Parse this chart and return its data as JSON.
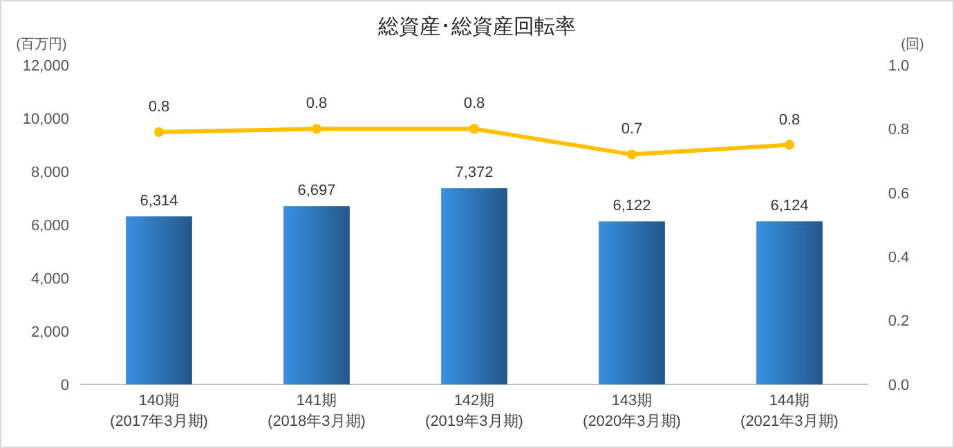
{
  "chart_data": {
    "type": "bar",
    "title": "総資産･総資産回転率",
    "ylabel": "(百万円)",
    "y2label": "(回)",
    "categories": [
      "140期\n(2017年3月期)",
      "141期\n(2018年3月期)",
      "142期\n(2019年3月期)",
      "143期\n(2020年3月期)",
      "144期\n(2021年3月期)"
    ],
    "series": [
      {
        "color": "#2e75b6",
        "values": [
          6314,
          6697,
          7372,
          6122,
          6124
        ],
        "value_labels": [
          "6,314",
          "6,697",
          "7,372",
          "6,122",
          "6,124"
        ]
      },
      {
        "type": "line",
        "axis": "y2",
        "color": "#ffc000",
        "values": [
          0.79,
          0.8,
          0.8,
          0.72,
          0.75
        ],
        "value_labels": [
          "0.8",
          "0.8",
          "0.8",
          "0.7",
          "0.8"
        ]
      }
    ],
    "ylim": [
      0,
      12000
    ],
    "yticks": [
      0,
      {
        "value": 2000,
        "label": "2,000"
      },
      {
        "value": 4000,
        "label": "4,000"
      },
      {
        "value": 6000,
        "label": "6,000"
      },
      {
        "value": 8000,
        "label": "8,000"
      },
      {
        "value": 10000,
        "label": "10,000"
      },
      {
        "value": 12000,
        "label": "12,000"
      }
    ],
    "y2lim": [
      0,
      1
    ],
    "y2ticks": [
      {
        "value": 0,
        "label": "0.0"
      },
      0.2,
      0.4,
      0.6,
      0.8,
      {
        "value": 1,
        "label": "1.0"
      }
    ],
    "marker": "circle",
    "grid": false
  }
}
